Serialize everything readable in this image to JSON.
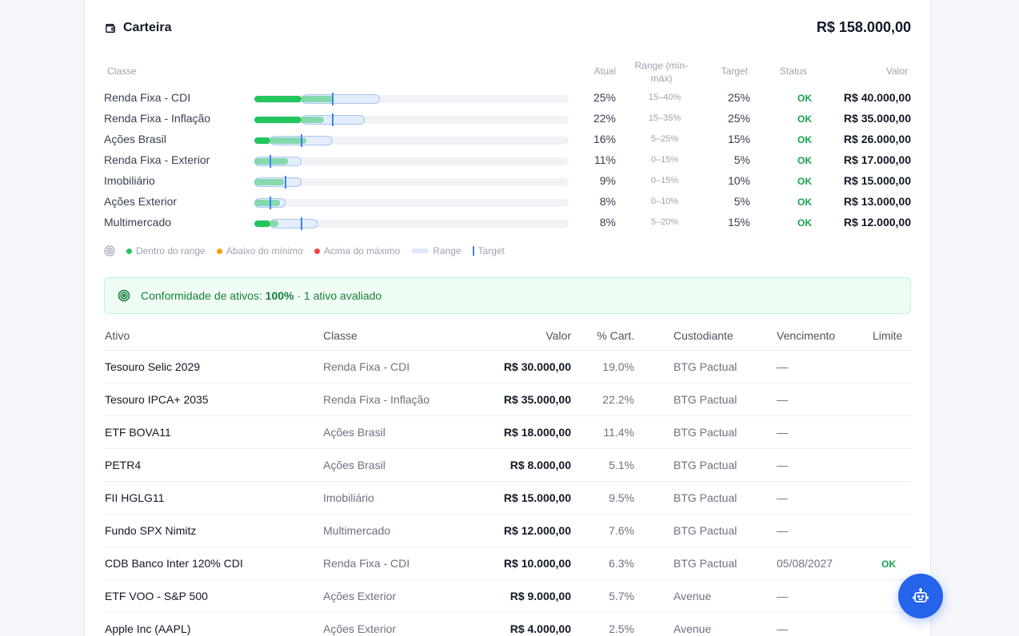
{
  "header": {
    "title": "Carteira",
    "total": "R$ 158.000,00"
  },
  "allocation": {
    "columns": {
      "classe": "Classe",
      "atual": "Atual",
      "range": "Range (mín-máx)",
      "target": "Target",
      "status": "Status",
      "valor": "Valor"
    },
    "rows": [
      {
        "name": "Renda Fixa - CDI",
        "atual": "25%",
        "range": "15–40%",
        "target": "25%",
        "status": "OK",
        "valor": "R$ 40.000,00",
        "atual_pct": 25.3,
        "min_pct": 15,
        "max_pct": 40,
        "target_pct": 25
      },
      {
        "name": "Renda Fixa - Inflação",
        "atual": "22%",
        "range": "15–35%",
        "target": "25%",
        "status": "OK",
        "valor": "R$ 35.000,00",
        "atual_pct": 22.2,
        "min_pct": 15,
        "max_pct": 35,
        "target_pct": 25
      },
      {
        "name": "Ações Brasil",
        "atual": "16%",
        "range": "5–25%",
        "target": "15%",
        "status": "OK",
        "valor": "R$ 26.000,00",
        "atual_pct": 16.5,
        "min_pct": 5,
        "max_pct": 25,
        "target_pct": 15
      },
      {
        "name": "Renda Fixa - Exterior",
        "atual": "11%",
        "range": "0–15%",
        "target": "5%",
        "status": "OK",
        "valor": "R$ 17.000,00",
        "atual_pct": 10.8,
        "min_pct": 0,
        "max_pct": 15,
        "target_pct": 5
      },
      {
        "name": "Imobiliário",
        "atual": "9%",
        "range": "0–15%",
        "target": "10%",
        "status": "OK",
        "valor": "R$ 15.000,00",
        "atual_pct": 9.5,
        "min_pct": 0,
        "max_pct": 15,
        "target_pct": 10
      },
      {
        "name": "Ações Exterior",
        "atual": "8%",
        "range": "0–10%",
        "target": "5%",
        "status": "OK",
        "valor": "R$ 13.000,00",
        "atual_pct": 8.2,
        "min_pct": 0,
        "max_pct": 10,
        "target_pct": 5
      },
      {
        "name": "Multimercado",
        "atual": "8%",
        "range": "5–20%",
        "target": "15%",
        "status": "OK",
        "valor": "R$ 12.000,00",
        "atual_pct": 7.6,
        "min_pct": 5,
        "max_pct": 20,
        "target_pct": 15
      }
    ],
    "bar_max_pct": 100,
    "colors": {
      "in_range": "#22c55e",
      "below": "#f59e0b",
      "above": "#ef4444",
      "range": "#dbe8fb",
      "target": "#3b82f6"
    }
  },
  "legend": {
    "in_range": "Dentro do range",
    "below": "Abaixo do mínimo",
    "above": "Acima do máximo",
    "range": "Range",
    "target": "Target"
  },
  "conformity": {
    "prefix": "Conformidade de ativos:",
    "value": "100%",
    "suffix": "· 1 ativo avaliado"
  },
  "assets": {
    "columns": {
      "ativo": "Ativo",
      "classe": "Classe",
      "valor": "Valor",
      "pct": "% Cart.",
      "custodiante": "Custodiante",
      "vencimento": "Vencimento",
      "limite": "Limite"
    },
    "rows": [
      {
        "ativo": "Tesouro Selic 2029",
        "classe": "Renda Fixa - CDI",
        "valor": "R$ 30.000,00",
        "pct": "19.0%",
        "custodiante": "BTG Pactual",
        "vencimento": "—",
        "limite": ""
      },
      {
        "ativo": "Tesouro IPCA+ 2035",
        "classe": "Renda Fixa - Inflação",
        "valor": "R$ 35.000,00",
        "pct": "22.2%",
        "custodiante": "BTG Pactual",
        "vencimento": "—",
        "limite": ""
      },
      {
        "ativo": "ETF BOVA11",
        "classe": "Ações Brasil",
        "valor": "R$ 18.000,00",
        "pct": "11.4%",
        "custodiante": "BTG Pactual",
        "vencimento": "—",
        "limite": ""
      },
      {
        "ativo": "PETR4",
        "classe": "Ações Brasil",
        "valor": "R$ 8.000,00",
        "pct": "5.1%",
        "custodiante": "BTG Pactual",
        "vencimento": "—",
        "limite": ""
      },
      {
        "ativo": "FII HGLG11",
        "classe": "Imobiliário",
        "valor": "R$ 15.000,00",
        "pct": "9.5%",
        "custodiante": "BTG Pactual",
        "vencimento": "—",
        "limite": ""
      },
      {
        "ativo": "Fundo SPX Nimitz",
        "classe": "Multimercado",
        "valor": "R$ 12.000,00",
        "pct": "7.6%",
        "custodiante": "BTG Pactual",
        "vencimento": "—",
        "limite": ""
      },
      {
        "ativo": "CDB Banco Inter 120% CDI",
        "classe": "Renda Fixa - CDI",
        "valor": "R$ 10.000,00",
        "pct": "6.3%",
        "custodiante": "BTG Pactual",
        "vencimento": "05/08/2027",
        "limite": "OK"
      },
      {
        "ativo": "ETF VOO - S&P 500",
        "classe": "Ações Exterior",
        "valor": "R$ 9.000,00",
        "pct": "5.7%",
        "custodiante": "Avenue",
        "vencimento": "—",
        "limite": ""
      },
      {
        "ativo": "Apple Inc (AAPL)",
        "classe": "Ações Exterior",
        "valor": "R$ 4.000,00",
        "pct": "2.5%",
        "custodiante": "Avenue",
        "vencimento": "—",
        "limite": ""
      }
    ]
  },
  "fab": {
    "icon": "robot-icon"
  }
}
